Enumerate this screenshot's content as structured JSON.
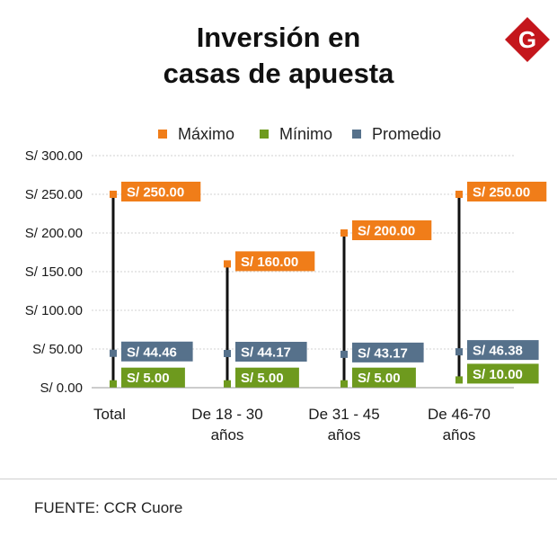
{
  "header": {
    "title_line1": "Inversión en",
    "title_line2": "casas de apuesta"
  },
  "logo": {
    "letter": "G",
    "color": "#c4161c",
    "icon": "gestion-logo-icon"
  },
  "legend": [
    {
      "label": "Máximo",
      "color": "#f07d19"
    },
    {
      "label": "Mínimo",
      "color": "#6e9a1e"
    },
    {
      "label": "Promedio",
      "color": "#56718b"
    }
  ],
  "chart_data": {
    "type": "range",
    "y_tick_labels": [
      "S/ 0.00",
      "S/ 50.00",
      "S/ 100.00",
      "S/ 150.00",
      "S/ 200.00",
      "S/ 250.00",
      "S/ 300.00"
    ],
    "ylim": [
      0,
      300
    ],
    "grid": true,
    "legend_position": "top",
    "categories": [
      {
        "label_lines": [
          "Total"
        ],
        "max": 250,
        "min": 5,
        "avg": 44.46,
        "max_label": "S/ 250.00",
        "min_label": "S/ 5.00",
        "avg_label": "S/ 44.46"
      },
      {
        "label_lines": [
          "De 18 - 30",
          "años"
        ],
        "max": 160,
        "min": 5,
        "avg": 44.17,
        "max_label": "S/ 160.00",
        "min_label": "S/ 5.00",
        "avg_label": "S/ 44.17"
      },
      {
        "label_lines": [
          "De 31 - 45",
          "años"
        ],
        "max": 200,
        "min": 5,
        "avg": 43.17,
        "max_label": "S/ 200.00",
        "min_label": "S/ 5.00",
        "avg_label": "S/ 43.17"
      },
      {
        "label_lines": [
          "De 46-70",
          "años"
        ],
        "max": 250,
        "min": 10,
        "avg": 46.38,
        "max_label": "S/ 250.00",
        "min_label": "S/ 10.00",
        "avg_label": "S/ 46.38"
      }
    ]
  },
  "footer": {
    "source": "FUENTE: CCR Cuore"
  }
}
